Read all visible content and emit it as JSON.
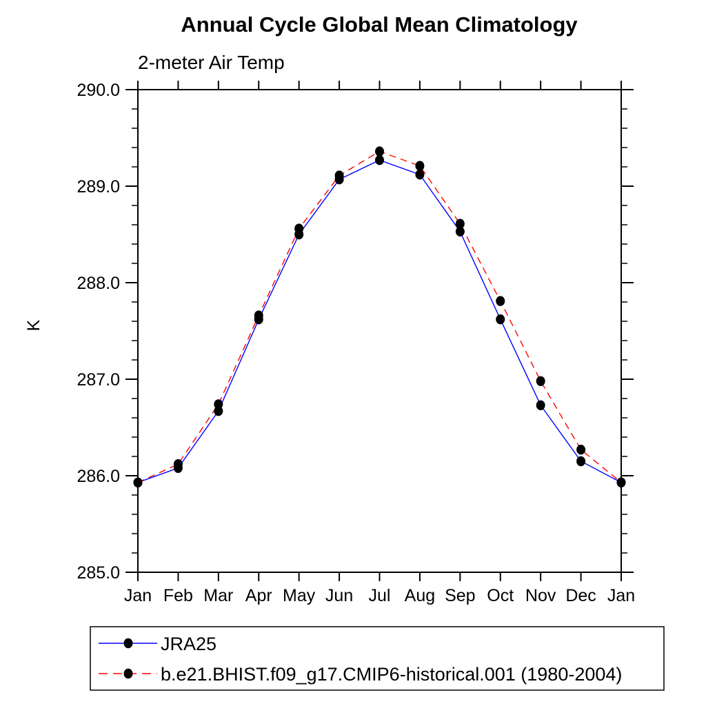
{
  "header": {
    "title": "Annual Cycle Global Mean Climatology",
    "subtitle": "2-meter Air Temp"
  },
  "axes": {
    "ylabel": "K",
    "y_tick_labels": [
      "285.0",
      "286.0",
      "287.0",
      "288.0",
      "289.0",
      "290.0"
    ],
    "x_tick_labels": [
      "Jan",
      "Feb",
      "Mar",
      "Apr",
      "May",
      "Jun",
      "Jul",
      "Aug",
      "Sep",
      "Oct",
      "Nov",
      "Dec",
      "Jan"
    ]
  },
  "colors": {
    "series1": "#0000ff",
    "series2": "#ff0000",
    "marker": "#000000",
    "axis": "#000000",
    "background": "#ffffff"
  },
  "chart_data": {
    "type": "line",
    "title": "Annual Cycle Global Mean Climatology",
    "subtitle": "2-meter Air Temp",
    "xlabel": "",
    "ylabel": "K",
    "categories": [
      "Jan",
      "Feb",
      "Mar",
      "Apr",
      "May",
      "Jun",
      "Jul",
      "Aug",
      "Sep",
      "Oct",
      "Nov",
      "Dec",
      "Jan"
    ],
    "ylim": [
      285.0,
      290.0
    ],
    "ytick_major_interval": 1.0,
    "ytick_minor_interval": 0.2,
    "grid": false,
    "legend_position": "bottom-left",
    "marker": "filled-circle",
    "series": [
      {
        "name": "JRA25",
        "color": "#0000ff",
        "line_style": "solid",
        "values": [
          285.93,
          286.08,
          286.67,
          287.62,
          288.5,
          289.07,
          289.27,
          289.12,
          288.53,
          287.62,
          286.73,
          286.15,
          285.93
        ]
      },
      {
        "name": "b.e21.BHIST.f09_g17.CMIP6-historical.001 (1980-2004)",
        "color": "#ff0000",
        "line_style": "dashed",
        "values": [
          285.93,
          286.12,
          286.74,
          287.66,
          288.56,
          289.11,
          289.36,
          289.21,
          288.61,
          287.81,
          286.98,
          286.27,
          285.93
        ]
      }
    ]
  }
}
